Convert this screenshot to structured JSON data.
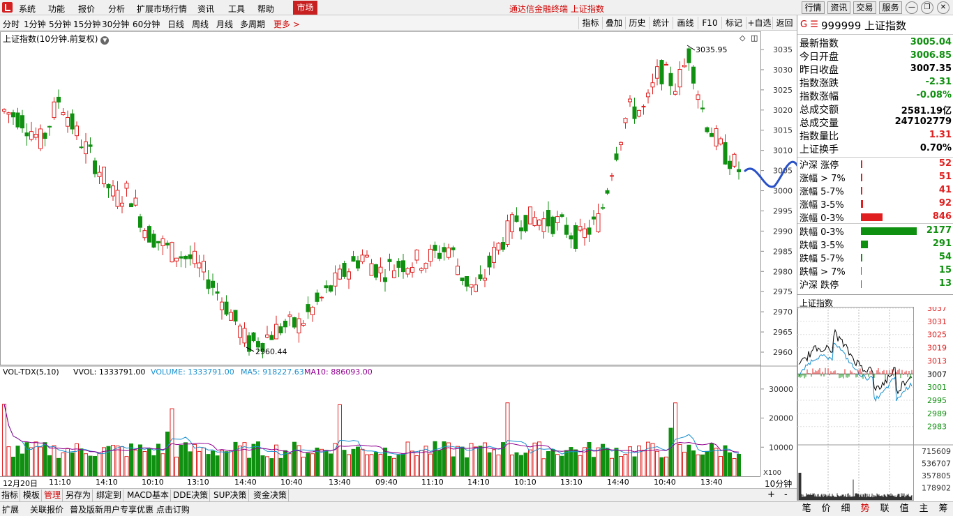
{
  "menu": {
    "items": [
      "系统",
      "功能",
      "报价",
      "分析",
      "扩展市场行情",
      "资讯",
      "工具",
      "帮助"
    ],
    "market": "市场",
    "title": "通达信金融终端 上证指数",
    "right_buttons": [
      "行情",
      "资讯",
      "交易",
      "服务"
    ]
  },
  "periods": {
    "items": [
      "分时",
      "1分钟",
      "5分钟",
      "15分钟",
      "30分钟",
      "60分钟",
      "日线",
      "周线",
      "月线",
      "多周期"
    ],
    "more": "更多 >"
  },
  "tools": [
    "指标",
    "叠加",
    "历史",
    "统计",
    "画线",
    "F10",
    "标记",
    "+自选",
    "返回"
  ],
  "chart": {
    "title": "上证指数(10分钟.前复权)",
    "max_label": "3035.95",
    "min_label": "2960.44",
    "price_axis": [
      "3035",
      "3030",
      "3025",
      "3020",
      "3015",
      "3010",
      "3005",
      "3000",
      "2995",
      "2990",
      "2985",
      "2980",
      "2975",
      "2970",
      "2965",
      "2960"
    ],
    "vol_header": {
      "name": "VOL-TDX(5,10)",
      "vvol": "VVOL: 1333791.00",
      "volume": "VOLUME: 1333791.00",
      "ma5": "MA5: 918227.63",
      "ma10": "MA10: 886093.00"
    },
    "vol_axis": [
      "30000",
      "20000",
      "10000"
    ],
    "vol_unit": "X100",
    "time_ticks": [
      "12月20日",
      "11:10",
      "14:10",
      "10:10",
      "13:10",
      "14:40",
      "10:40",
      "13:40",
      "09:40",
      "11:10",
      "14:10",
      "10:10",
      "13:10",
      "14:40",
      "10:40",
      "13:40"
    ],
    "period_label": "10分钟",
    "colors": {
      "up": "#e02020",
      "down": "#109010",
      "ma5": "#1890d0",
      "ma10": "#900090",
      "annotation": "#2850c8"
    }
  },
  "quote": {
    "code": "999999",
    "name": "上证指数",
    "g": "G ☰",
    "stats": [
      {
        "label": "最新指数",
        "value": "3005.04",
        "color": "#109010"
      },
      {
        "label": "今日开盘",
        "value": "3006.85",
        "color": "#109010"
      },
      {
        "label": "昨日收盘",
        "value": "3007.35",
        "color": "#000000"
      },
      {
        "label": "指数涨跌",
        "value": "-2.31",
        "color": "#109010"
      },
      {
        "label": "指数涨幅",
        "value": "-0.08%",
        "color": "#109010"
      },
      {
        "label": "总成交额",
        "value": "2581.19亿",
        "color": "#000000"
      },
      {
        "label": "总成交量",
        "value": "247102779",
        "color": "#000000"
      },
      {
        "label": "指数量比",
        "value": "1.31",
        "color": "#e02020"
      },
      {
        "label": "上证换手",
        "value": "0.70%",
        "color": "#000000"
      }
    ],
    "breadth": [
      {
        "label": "沪深 涨停",
        "value": "52",
        "frac": 0.02,
        "color": "#e02020"
      },
      {
        "label": "涨幅 > 7%",
        "value": "51",
        "frac": 0.02,
        "color": "#e02020"
      },
      {
        "label": "涨幅 5-7%",
        "value": "41",
        "frac": 0.02,
        "color": "#e02020"
      },
      {
        "label": "涨幅 3-5%",
        "value": "92",
        "frac": 0.04,
        "color": "#e02020"
      },
      {
        "label": "涨幅 0-3%",
        "value": "846",
        "frac": 0.39,
        "color": "#e02020"
      },
      {
        "label": "跌幅 0-3%",
        "value": "2177",
        "frac": 1.0,
        "color": "#109010"
      },
      {
        "label": "跌幅 3-5%",
        "value": "291",
        "frac": 0.13,
        "color": "#109010"
      },
      {
        "label": "跌幅 5-7%",
        "value": "54",
        "frac": 0.02,
        "color": "#109010"
      },
      {
        "label": "跌幅 > 7%",
        "value": "15",
        "frac": 0.01,
        "color": "#109010"
      },
      {
        "label": "沪深 跌停",
        "value": "13",
        "frac": 0.01,
        "color": "#109010"
      }
    ],
    "mini_title": "上证指数",
    "mini_price_axis": [
      "3037",
      "3031",
      "3025",
      "3019",
      "3013",
      "3007",
      "3001",
      "2995",
      "2989",
      "2983"
    ],
    "mini_vol_axis": [
      "715609",
      "536707",
      "357805",
      "178902"
    ]
  },
  "bottom_tabs": [
    "指标",
    "模板",
    "管理",
    "另存为",
    "绑定到",
    "MACD基本",
    "DDE决策",
    "SUP决策",
    "资金决策"
  ],
  "status": {
    "items": [
      "扩展",
      "关联报价",
      "普及版新用户专享优惠 点击订购"
    ],
    "nav": [
      "笔",
      "价",
      "细",
      "势",
      "联",
      "值",
      "主",
      "筹"
    ]
  }
}
